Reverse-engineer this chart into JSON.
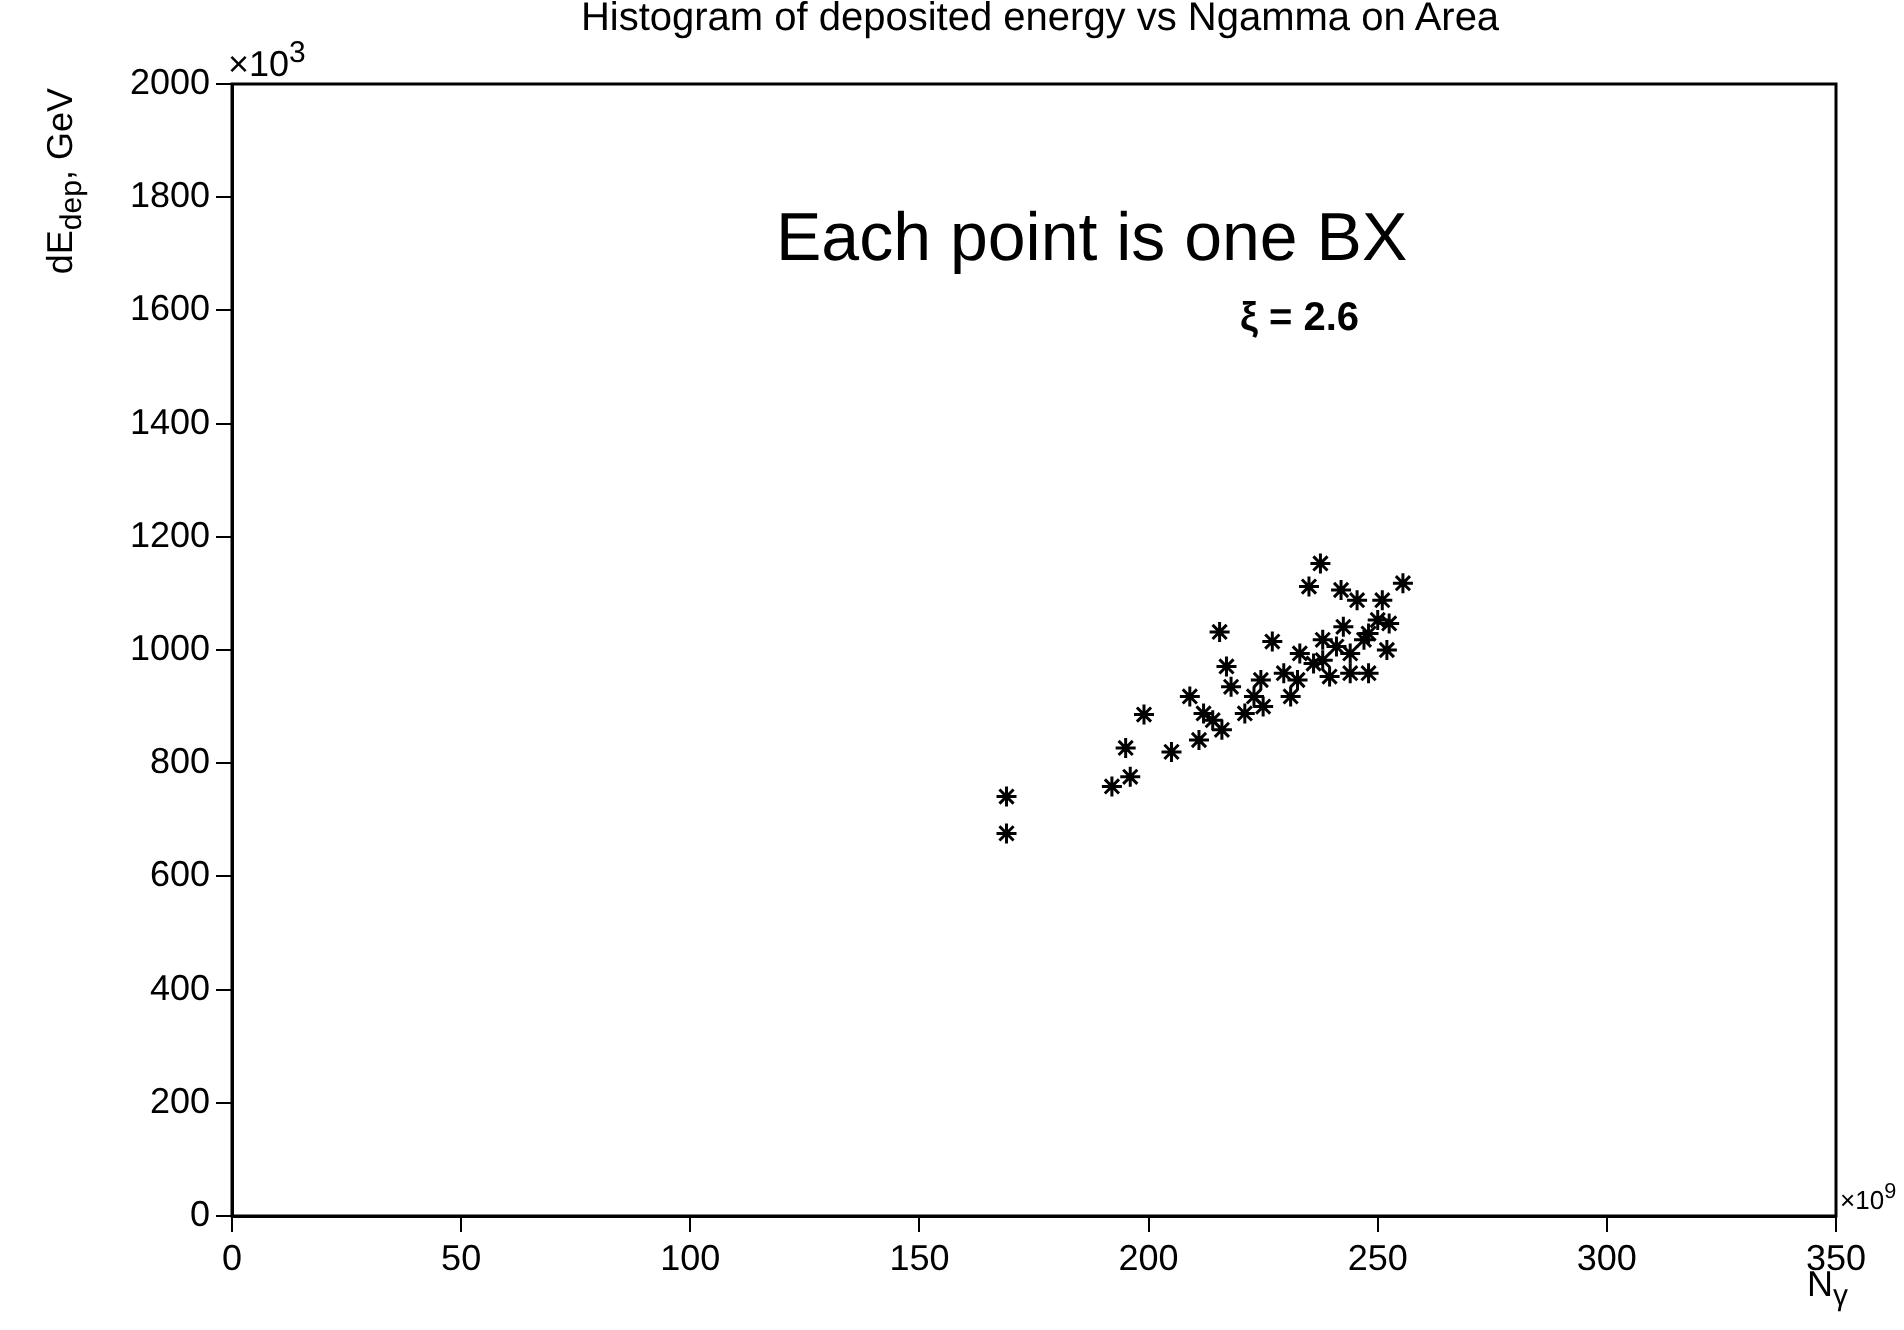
{
  "chart_data": {
    "type": "scatter",
    "title": "Histogram of deposited energy vs Ngamma on Area",
    "xlabel": "N$_{γ}$",
    "ylabel": "dE$_{dep}$, GeV",
    "annotations": [
      "Each point is one BX",
      "ξ = 2.6",
      "×10$^{9}$",
      "×10$^{3}$"
    ],
    "xlim": [
      0,
      350
    ],
    "xticks": [
      0,
      50,
      100,
      150,
      200,
      250,
      300,
      350
    ],
    "ylim": [
      0,
      2000
    ],
    "yticks": [
      0,
      200,
      400,
      600,
      800,
      1000,
      1200,
      1400,
      1600,
      1800,
      2000
    ],
    "grid": false,
    "legend": false,
    "series": [
      {
        "color": "#000000",
        "x": [
          169,
          169,
          192,
          196,
          195,
          199,
          205,
          209,
          211,
          215.5,
          217,
          214,
          216,
          218,
          221,
          224.5,
          225,
          227,
          229.5,
          231,
          233,
          236,
          235,
          237.5,
          238,
          239.5,
          242,
          242.5,
          244,
          245.5,
          247,
          248,
          250,
          251,
          252,
          252.5,
          255.5,
          232.5,
          238,
          244,
          248,
          241,
          223,
          212
        ],
        "values": [
          676,
          741,
          759,
          776,
          827,
          886,
          820,
          918,
          841,
          1032,
          971,
          876,
          859,
          935,
          888,
          947,
          900,
          1015,
          959,
          918,
          994,
          976,
          1112,
          1153,
          1018,
          953,
          1106,
          1041,
          994,
          1088,
          1018,
          959,
          1053,
          1088,
          1000,
          1047,
          1118,
          947,
          982,
          959,
          1029,
          1006,
          918,
          888
        ]
      }
    ]
  }
}
